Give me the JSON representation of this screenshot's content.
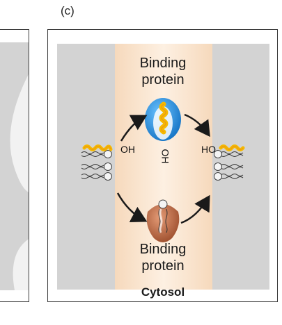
{
  "panel_label": "(c)",
  "top_binding_protein": [
    "Binding",
    "protein"
  ],
  "bottom_binding_protein": [
    "Binding",
    "protein"
  ],
  "compartment": "Cytosol",
  "hydroxyl": {
    "left": "OH",
    "middle": "OH",
    "right": "HO"
  },
  "colors": {
    "membrane": "#d3d3d3",
    "cytosol": "#fbe6d1",
    "top_protein": "#1e88d6",
    "bottom_protein": "#b85f3a",
    "lipid_tail": "#f5b800"
  }
}
